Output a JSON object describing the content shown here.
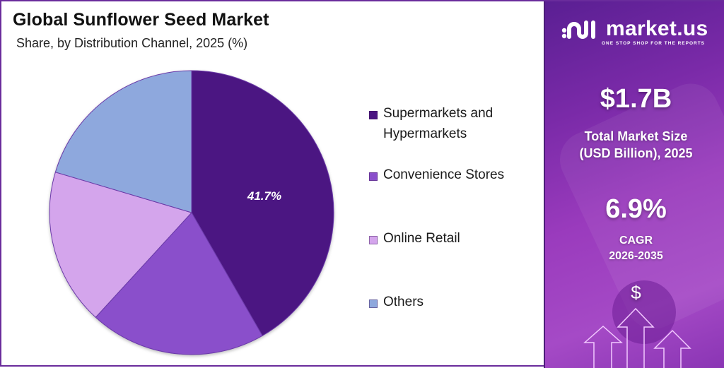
{
  "header": {
    "title": "Global Sunflower Seed Market",
    "subtitle": "Share, by Distribution Channel, 2025 (%)"
  },
  "legend": {
    "items": [
      {
        "label_line1": "Supermarkets and",
        "label_line2": "Hypermarkets",
        "color": "#4b1582"
      },
      {
        "label_line1": "Convenience Stores",
        "label_line2": "",
        "color": "#8a4fcb"
      },
      {
        "label_line1": "Online Retail",
        "label_line2": "",
        "color": "#d4a5ec"
      },
      {
        "label_line1": "Others",
        "label_line2": "",
        "color": "#8ea8dd"
      }
    ]
  },
  "pie_label": "41.7%",
  "side_panel": {
    "brand_name": "market.us",
    "brand_tagline": "ONE STOP SHOP FOR THE REPORTS",
    "market_size_value": "$1.7B",
    "market_size_label_line1": "Total Market Size",
    "market_size_label_line2": "(USD Billion), 2025",
    "cagr_value": "6.9%",
    "cagr_label_line1": "CAGR",
    "cagr_label_line2": "2026-2035",
    "dollar_symbol": "$"
  },
  "colors": {
    "frame": "#6a2c9c",
    "panel_gradient_start": "#5a1f93",
    "panel_gradient_end": "#a54ac6"
  },
  "chart_data": {
    "type": "pie",
    "title": "Global Sunflower Seed Market",
    "subtitle": "Share, by Distribution Channel, 2025 (%)",
    "categories": [
      "Supermarkets and Hypermarkets",
      "Convenience Stores",
      "Online Retail",
      "Others"
    ],
    "values": [
      41.7,
      20.1,
      17.8,
      20.4
    ],
    "labeled_values": {
      "Supermarkets and Hypermarkets": 41.7
    },
    "colors": [
      "#4b1582",
      "#8a4fcb",
      "#d4a5ec",
      "#8ea8dd"
    ],
    "start_angle": "12 o'clock, clockwise",
    "legend_position": "right",
    "xlabel": "",
    "ylabel": ""
  }
}
